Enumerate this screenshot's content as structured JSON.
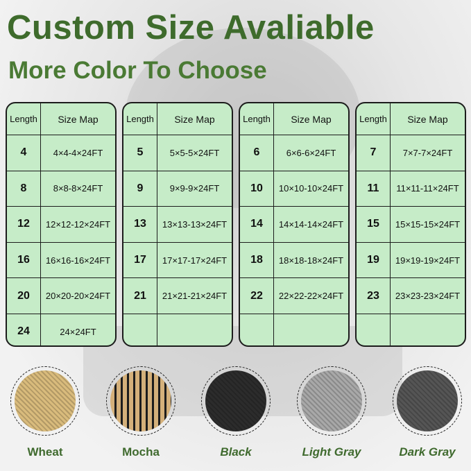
{
  "title": "Custom Size Avaliable",
  "subtitle": "More Color To Choose",
  "accent_color": "#3e6b2c",
  "table_bg_color": "#c6ecc8",
  "tables": [
    {
      "header": [
        "Length",
        "Size Map"
      ],
      "rows": [
        [
          "4",
          "4×4-4×24FT"
        ],
        [
          "8",
          "8×8-8×24FT"
        ],
        [
          "12",
          "12×12-12×24FT"
        ],
        [
          "16",
          "16×16-16×24FT"
        ],
        [
          "20",
          "20×20-20×24FT"
        ],
        [
          "24",
          "24×24FT"
        ]
      ]
    },
    {
      "header": [
        "Length",
        "Size Map"
      ],
      "rows": [
        [
          "5",
          "5×5-5×24FT"
        ],
        [
          "9",
          "9×9-9×24FT"
        ],
        [
          "13",
          "13×13-13×24FT"
        ],
        [
          "17",
          "17×17-17×24FT"
        ],
        [
          "21",
          "21×21-21×24FT"
        ],
        [
          "",
          ""
        ]
      ]
    },
    {
      "header": [
        "Length",
        "Size Map"
      ],
      "rows": [
        [
          "6",
          "6×6-6×24FT"
        ],
        [
          "10",
          "10×10-10×24FT"
        ],
        [
          "14",
          "14×14-14×24FT"
        ],
        [
          "18",
          "18×18-18×24FT"
        ],
        [
          "22",
          "22×22-22×24FT"
        ],
        [
          "",
          ""
        ]
      ]
    },
    {
      "header": [
        "Length",
        "Size Map"
      ],
      "rows": [
        [
          "7",
          "7×7-7×24FT"
        ],
        [
          "11",
          "11×11-11×24FT"
        ],
        [
          "15",
          "15×15-15×24FT"
        ],
        [
          "19",
          "19×19-19×24FT"
        ],
        [
          "23",
          "23×23-23×24FT"
        ],
        [
          "",
          ""
        ]
      ]
    }
  ],
  "colors": [
    {
      "label": "Wheat",
      "swatch": "#d9bb7c"
    },
    {
      "label": "Mocha",
      "swatch": "#8a6f45"
    },
    {
      "label": "Black",
      "swatch": "#2c2c2c"
    },
    {
      "label": "Light Gray",
      "swatch": "#a8a8a8"
    },
    {
      "label": "Dark Gray",
      "swatch": "#555555"
    }
  ]
}
